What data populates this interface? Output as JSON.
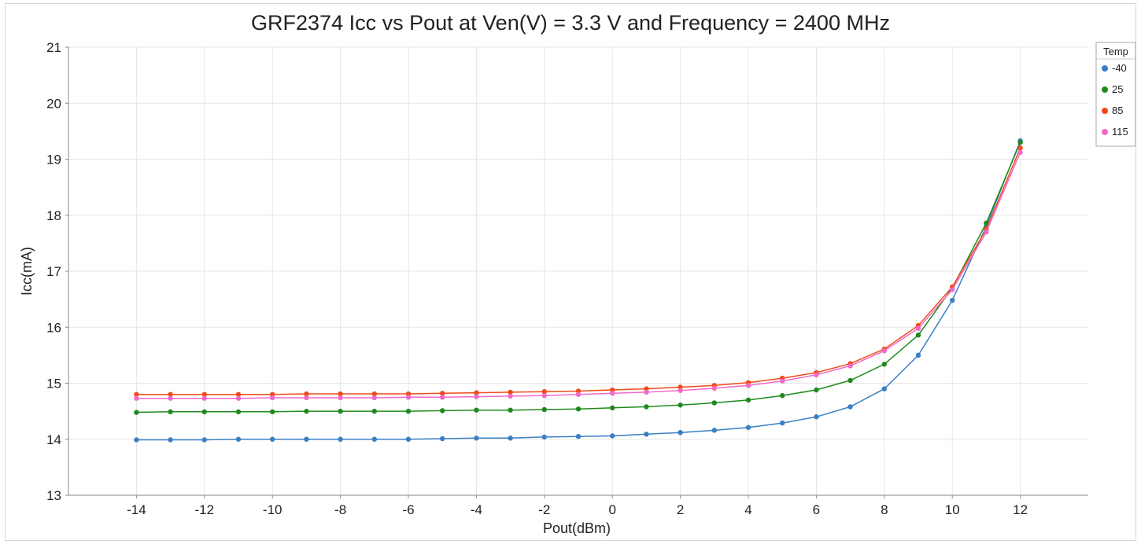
{
  "chart_data": {
    "type": "line",
    "title": "GRF2374 Icc vs Pout at Ven(V) = 3.3 V and Frequency = 2400 MHz",
    "xlabel": "Pout(dBm)",
    "ylabel": "Icc(mA)",
    "xlim": [
      -16,
      14
    ],
    "ylim": [
      13,
      21
    ],
    "xticks": [
      -14,
      -12,
      -10,
      -8,
      -6,
      -4,
      -2,
      0,
      2,
      4,
      6,
      8,
      10,
      12
    ],
    "yticks": [
      13,
      14,
      15,
      16,
      17,
      18,
      19,
      20,
      21
    ],
    "grid": true,
    "legend": {
      "title": "Temp",
      "position": "top-right"
    },
    "x": [
      -14,
      -13,
      -12,
      -11,
      -10,
      -9,
      -8,
      -7,
      -6,
      -5,
      -4,
      -3,
      -2,
      -1,
      0,
      1,
      2,
      3,
      4,
      5,
      6,
      7,
      8,
      9,
      10,
      11,
      12
    ],
    "series": [
      {
        "name": "-40",
        "color": "#3a7fc4",
        "values": [
          13.99,
          13.99,
          13.99,
          14.0,
          14.0,
          14.0,
          14.0,
          14.0,
          14.0,
          14.01,
          14.02,
          14.02,
          14.04,
          14.05,
          14.06,
          14.09,
          14.12,
          14.16,
          14.21,
          14.29,
          14.4,
          14.58,
          14.9,
          15.5,
          16.48,
          17.8,
          19.33
        ]
      },
      {
        "name": "25",
        "color": "#1e8a1e",
        "values": [
          14.48,
          14.49,
          14.49,
          14.49,
          14.49,
          14.5,
          14.5,
          14.5,
          14.5,
          14.51,
          14.52,
          14.52,
          14.53,
          14.54,
          14.56,
          14.58,
          14.61,
          14.65,
          14.7,
          14.78,
          14.88,
          15.05,
          15.34,
          15.86,
          16.7,
          17.86,
          19.3
        ]
      },
      {
        "name": "85",
        "color": "#f04a1a",
        "values": [
          14.8,
          14.8,
          14.8,
          14.8,
          14.8,
          14.81,
          14.81,
          14.81,
          14.81,
          14.82,
          14.83,
          14.84,
          14.85,
          14.86,
          14.88,
          14.9,
          14.93,
          14.96,
          15.01,
          15.09,
          15.19,
          15.35,
          15.61,
          16.03,
          16.72,
          17.75,
          19.2
        ]
      },
      {
        "name": "115",
        "color": "#f06ac8",
        "values": [
          14.73,
          14.73,
          14.73,
          14.73,
          14.74,
          14.74,
          14.74,
          14.74,
          14.75,
          14.75,
          14.76,
          14.77,
          14.78,
          14.8,
          14.82,
          14.84,
          14.87,
          14.91,
          14.96,
          15.04,
          15.15,
          15.31,
          15.58,
          15.98,
          16.67,
          17.7,
          19.12
        ]
      }
    ]
  }
}
